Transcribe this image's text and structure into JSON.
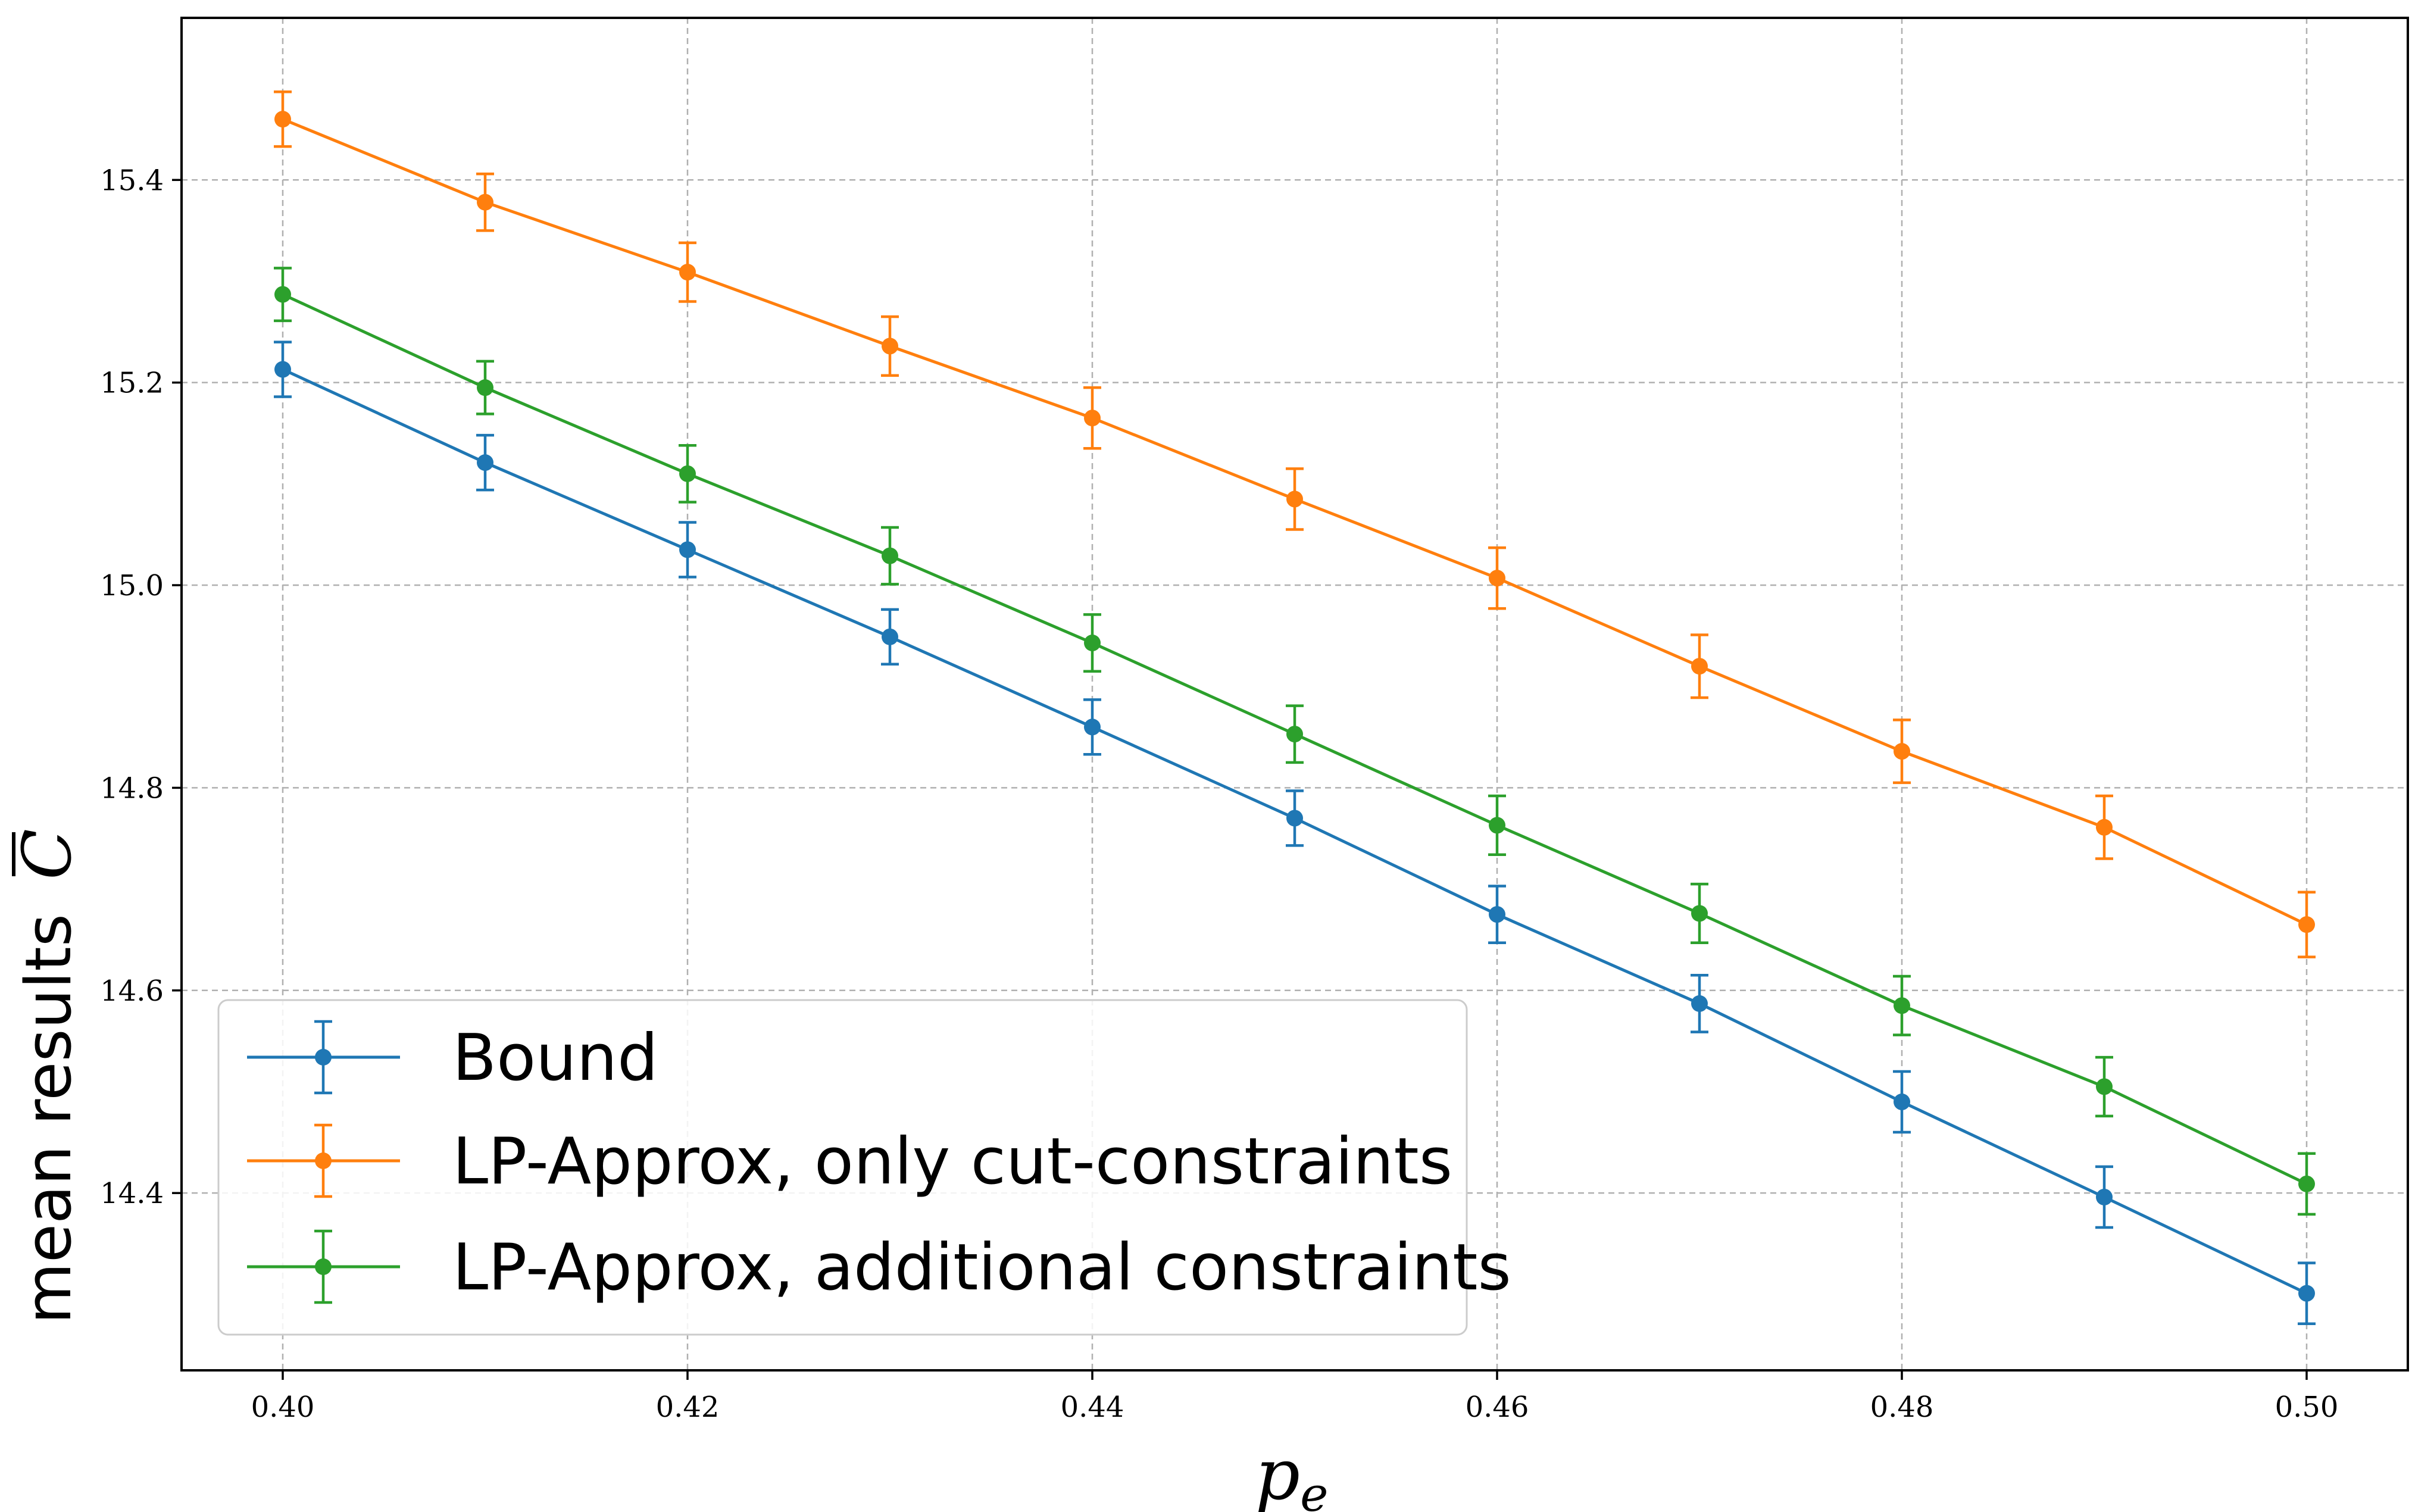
{
  "chart_data": {
    "type": "line",
    "error_bars": true,
    "grid": true,
    "grid_style": "dashed",
    "legend_position": "lower-left",
    "x_axis": {
      "label_main": "p",
      "label_sub": "e",
      "range": [
        0.395,
        0.505
      ],
      "ticks": [
        0.4,
        0.42,
        0.44,
        0.46,
        0.48,
        0.5
      ],
      "tick_labels": [
        "0.40",
        "0.42",
        "0.44",
        "0.46",
        "0.48",
        "0.50"
      ]
    },
    "y_axis": {
      "label_text": "mean results",
      "label_symbol": "C",
      "range": [
        14.225,
        15.56
      ],
      "ticks": [
        14.4,
        14.6,
        14.8,
        15.0,
        15.2,
        15.4
      ],
      "tick_labels": [
        "14.4",
        "14.6",
        "14.8",
        "15.0",
        "15.2",
        "15.4"
      ]
    },
    "x": [
      0.4,
      0.41,
      0.42,
      0.43,
      0.44,
      0.45,
      0.46,
      0.47,
      0.48,
      0.49,
      0.5
    ],
    "series": [
      {
        "name": "Bound",
        "color": "#1f77b4",
        "values": [
          15.213,
          15.121,
          15.035,
          14.949,
          14.86,
          14.77,
          14.675,
          14.587,
          14.49,
          14.396,
          14.301
        ],
        "errors": [
          0.027,
          0.027,
          0.027,
          0.027,
          0.027,
          0.027,
          0.028,
          0.028,
          0.03,
          0.03,
          0.03
        ]
      },
      {
        "name": "LP-Approx, only cut-constraints",
        "color": "#ff7f0e",
        "values": [
          15.46,
          15.378,
          15.309,
          15.236,
          15.165,
          15.085,
          15.007,
          14.92,
          14.836,
          14.761,
          14.665
        ],
        "errors": [
          0.027,
          0.028,
          0.029,
          0.029,
          0.03,
          0.03,
          0.03,
          0.031,
          0.031,
          0.031,
          0.032
        ]
      },
      {
        "name": "LP-Approx, additional constraints",
        "color": "#2ca02c",
        "values": [
          15.287,
          15.195,
          15.11,
          15.029,
          14.943,
          14.853,
          14.763,
          14.676,
          14.585,
          14.505,
          14.409
        ],
        "errors": [
          0.026,
          0.026,
          0.028,
          0.028,
          0.028,
          0.028,
          0.029,
          0.029,
          0.029,
          0.029,
          0.03
        ]
      }
    ]
  }
}
